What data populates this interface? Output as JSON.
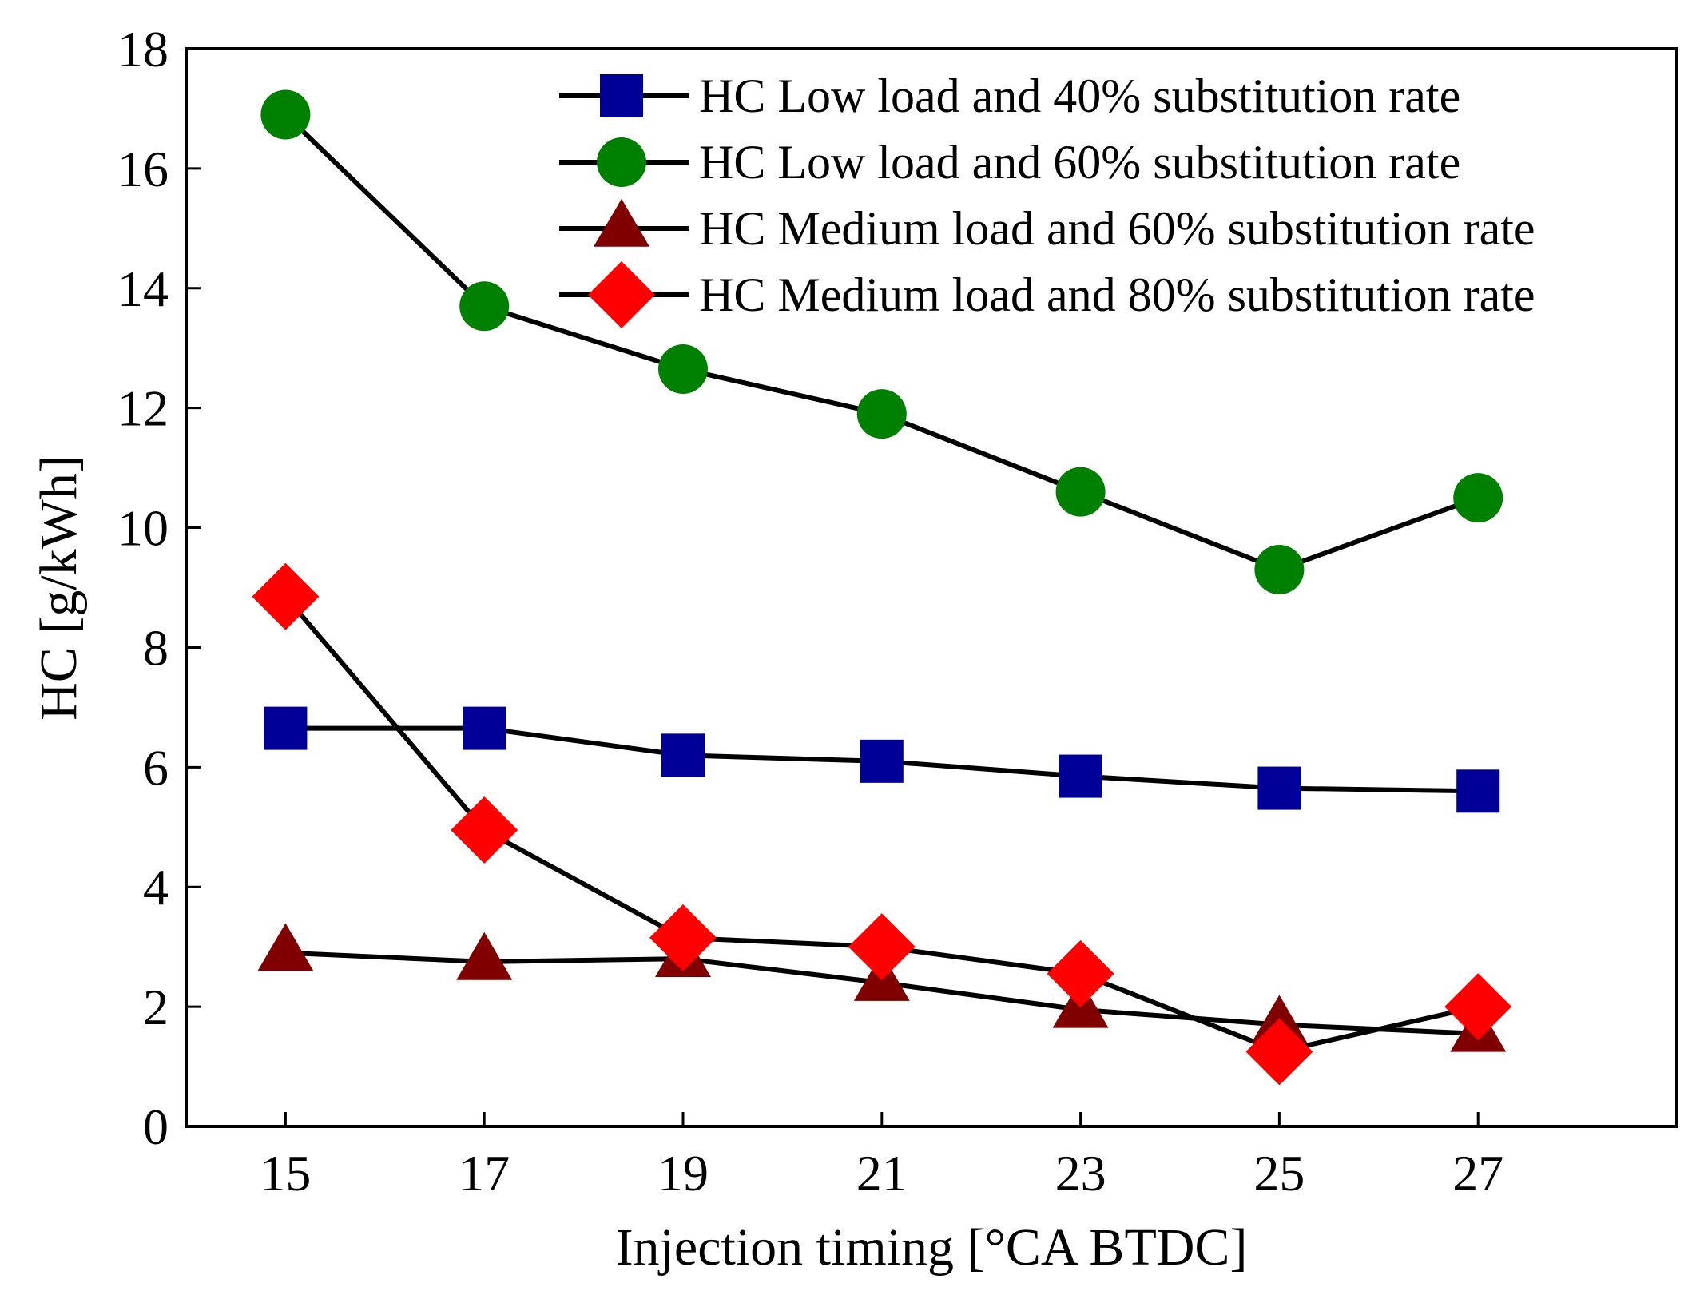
{
  "chart_data": {
    "type": "line",
    "title": "",
    "xlabel": "Injection timing [°CA BTDC]",
    "ylabel": "HC [g/kWh]",
    "x": [
      15,
      17,
      19,
      21,
      23,
      25,
      27
    ],
    "xticks": [
      "15",
      "17",
      "19",
      "21",
      "23",
      "25",
      "27"
    ],
    "xlim": [
      14,
      29
    ],
    "yticks": [
      "0",
      "2",
      "4",
      "6",
      "8",
      "10",
      "12",
      "14",
      "16",
      "18"
    ],
    "ylim": [
      0,
      18
    ],
    "grid": false,
    "legend_position": "top-right",
    "series": [
      {
        "name": "HC Low load and 40% substitution rate",
        "marker": "square",
        "color": "#000099",
        "line_color": "#000000",
        "values": [
          6.65,
          6.65,
          6.2,
          6.1,
          5.85,
          5.65,
          5.6
        ]
      },
      {
        "name": "HC Low load and 60% substitution rate",
        "marker": "circle",
        "color": "#008000",
        "line_color": "#000000",
        "values": [
          16.9,
          13.7,
          12.65,
          11.9,
          10.6,
          9.3,
          10.5
        ]
      },
      {
        "name": "HC Medium load and 60% substitution rate",
        "marker": "triangle",
        "color": "#800000",
        "line_color": "#000000",
        "values": [
          2.9,
          2.75,
          2.8,
          2.4,
          1.95,
          1.7,
          1.55
        ]
      },
      {
        "name": "HC Medium load and 80% substitution rate",
        "marker": "diamond",
        "color": "#ff0000",
        "line_color": "#000000",
        "values": [
          8.85,
          4.95,
          3.15,
          3.0,
          2.55,
          1.25,
          2.0
        ]
      }
    ]
  }
}
